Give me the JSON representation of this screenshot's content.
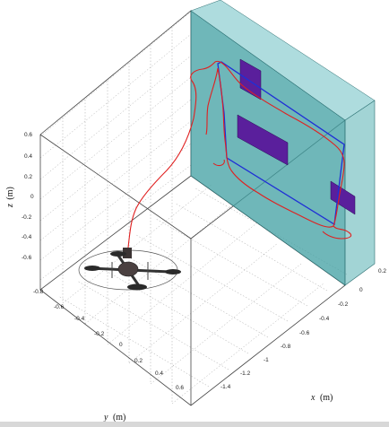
{
  "chart_data": {
    "type": "3d-line",
    "axes": {
      "x": {
        "label": "x",
        "unit": "(m)",
        "ticks": [
          0.2,
          0,
          -0.2,
          -0.4,
          -0.6,
          -0.8,
          -1,
          -1.2,
          -1.4
        ]
      },
      "y": {
        "label": "y",
        "unit": "(m)",
        "ticks": [
          -0.8,
          -0.6,
          -0.4,
          -0.2,
          0,
          0.2,
          0.4,
          0.6
        ]
      },
      "z": {
        "label": "z",
        "unit": "(m)",
        "ticks": [
          0.6,
          0.4,
          0.2,
          0,
          -0.2,
          -0.4,
          -0.6
        ]
      }
    },
    "grid": true,
    "series": [
      {
        "color": "#1f2fd6",
        "style": "closed-loop"
      },
      {
        "color": "#e02020",
        "style": "trajectory"
      }
    ],
    "wall": {
      "color": "#3f9fa2",
      "opacity": 0.75
    },
    "targets": {
      "color": "#5a1f9c",
      "count": 3
    }
  }
}
